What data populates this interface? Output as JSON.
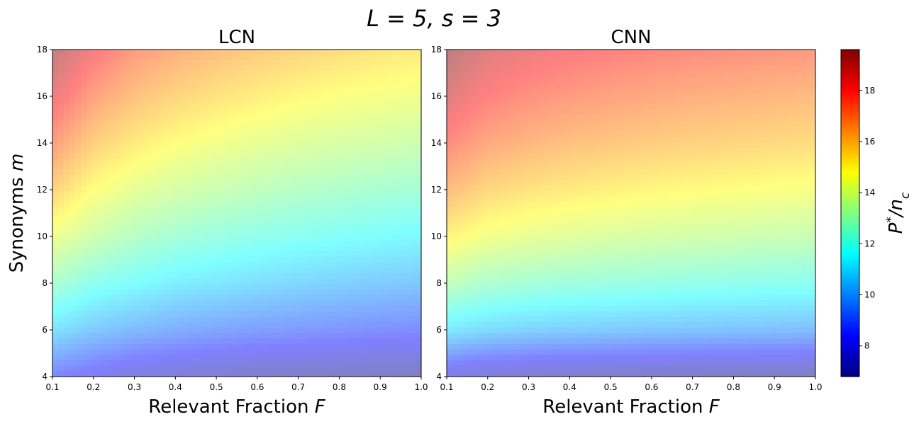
{
  "figure": {
    "suptitle_main": "L = 5, ",
    "suptitle_second": "s = 3"
  },
  "chart_data": [
    {
      "type": "heatmap",
      "title": "LCN",
      "xlabel": "Relevant Fraction",
      "xlabel_symbol": "F",
      "ylabel": "Synonyms",
      "ylabel_symbol": "m",
      "xlim": [
        0.1,
        1.0
      ],
      "ylim": [
        4,
        18
      ],
      "x_ticks": [
        "0.1",
        "0.2",
        "0.3",
        "0.4",
        "0.5",
        "0.6",
        "0.7",
        "0.8",
        "0.9",
        "1.0"
      ],
      "y_ticks": [
        "4",
        "6",
        "8",
        "10",
        "12",
        "14",
        "16",
        "18"
      ],
      "x": [
        0.1,
        0.2,
        0.3,
        0.4,
        0.5,
        0.6,
        0.7,
        0.8,
        0.9,
        1.0
      ],
      "y": [
        4,
        6,
        8,
        10,
        12,
        14,
        16,
        18
      ],
      "z": [
        [
          8.6,
          8.0,
          7.6,
          7.4,
          7.2,
          7.1,
          7.0,
          6.95,
          6.9,
          6.85
        ],
        [
          10.9,
          10.3,
          9.9,
          9.6,
          9.4,
          9.2,
          9.1,
          8.95,
          8.85,
          8.75
        ],
        [
          12.8,
          12.0,
          11.6,
          11.2,
          11.0,
          10.8,
          10.6,
          10.45,
          10.3,
          10.2
        ],
        [
          14.4,
          13.6,
          13.0,
          12.6,
          12.3,
          12.1,
          11.9,
          11.75,
          11.6,
          11.45
        ],
        [
          15.9,
          14.8,
          14.2,
          13.8,
          13.5,
          13.25,
          13.0,
          12.85,
          12.7,
          12.55
        ],
        [
          17.2,
          16.0,
          15.3,
          14.85,
          14.5,
          14.25,
          14.0,
          13.85,
          13.7,
          13.55
        ],
        [
          18.5,
          17.1,
          16.35,
          15.85,
          15.5,
          15.2,
          14.95,
          14.75,
          14.6,
          14.45
        ],
        [
          19.6,
          18.2,
          17.3,
          16.8,
          16.4,
          16.1,
          15.85,
          15.65,
          15.45,
          15.3
        ]
      ]
    },
    {
      "type": "heatmap",
      "title": "CNN",
      "xlabel": "Relevant Fraction",
      "xlabel_symbol": "F",
      "ylabel": "",
      "ylabel_symbol": "",
      "xlim": [
        0.1,
        1.0
      ],
      "ylim": [
        4,
        18
      ],
      "x_ticks": [
        "0.1",
        "0.2",
        "0.3",
        "0.4",
        "0.5",
        "0.6",
        "0.7",
        "0.8",
        "0.9",
        "1.0"
      ],
      "y_ticks": [
        "4",
        "6",
        "8",
        "10",
        "12",
        "14",
        "16",
        "18"
      ],
      "x": [
        0.1,
        0.2,
        0.3,
        0.4,
        0.5,
        0.6,
        0.7,
        0.8,
        0.9,
        1.0
      ],
      "y": [
        4,
        6,
        8,
        10,
        12,
        14,
        16,
        18
      ],
      "z": [
        [
          7.6,
          7.3,
          7.15,
          7.05,
          7.0,
          6.95,
          6.9,
          6.85,
          6.82,
          6.8
        ],
        [
          11.1,
          10.7,
          10.5,
          10.4,
          10.3,
          10.22,
          10.15,
          10.1,
          10.05,
          10.0
        ],
        [
          13.3,
          12.8,
          12.6,
          12.45,
          12.35,
          12.25,
          12.15,
          12.08,
          12.0,
          11.95
        ],
        [
          15.1,
          14.5,
          14.25,
          14.05,
          13.9,
          13.8,
          13.7,
          13.6,
          13.5,
          13.45
        ],
        [
          16.5,
          15.8,
          15.5,
          15.3,
          15.15,
          15.0,
          14.9,
          14.8,
          14.7,
          14.62
        ],
        [
          17.7,
          16.95,
          16.6,
          16.35,
          16.2,
          16.05,
          15.95,
          15.85,
          15.75,
          15.65
        ],
        [
          18.8,
          17.95,
          17.55,
          17.3,
          17.1,
          16.95,
          16.8,
          16.7,
          16.6,
          16.5
        ],
        [
          19.7,
          18.85,
          18.4,
          18.15,
          17.95,
          17.8,
          17.65,
          17.55,
          17.45,
          17.35
        ]
      ]
    }
  ],
  "colorbar": {
    "label_symbol": "P",
    "label_superscript": "*",
    "label_rest": "/n",
    "label_subscript": "c",
    "colormap": "jet",
    "range": [
      6.8,
      19.6
    ],
    "ticks": [
      "8",
      "10",
      "12",
      "14",
      "16",
      "18"
    ]
  }
}
